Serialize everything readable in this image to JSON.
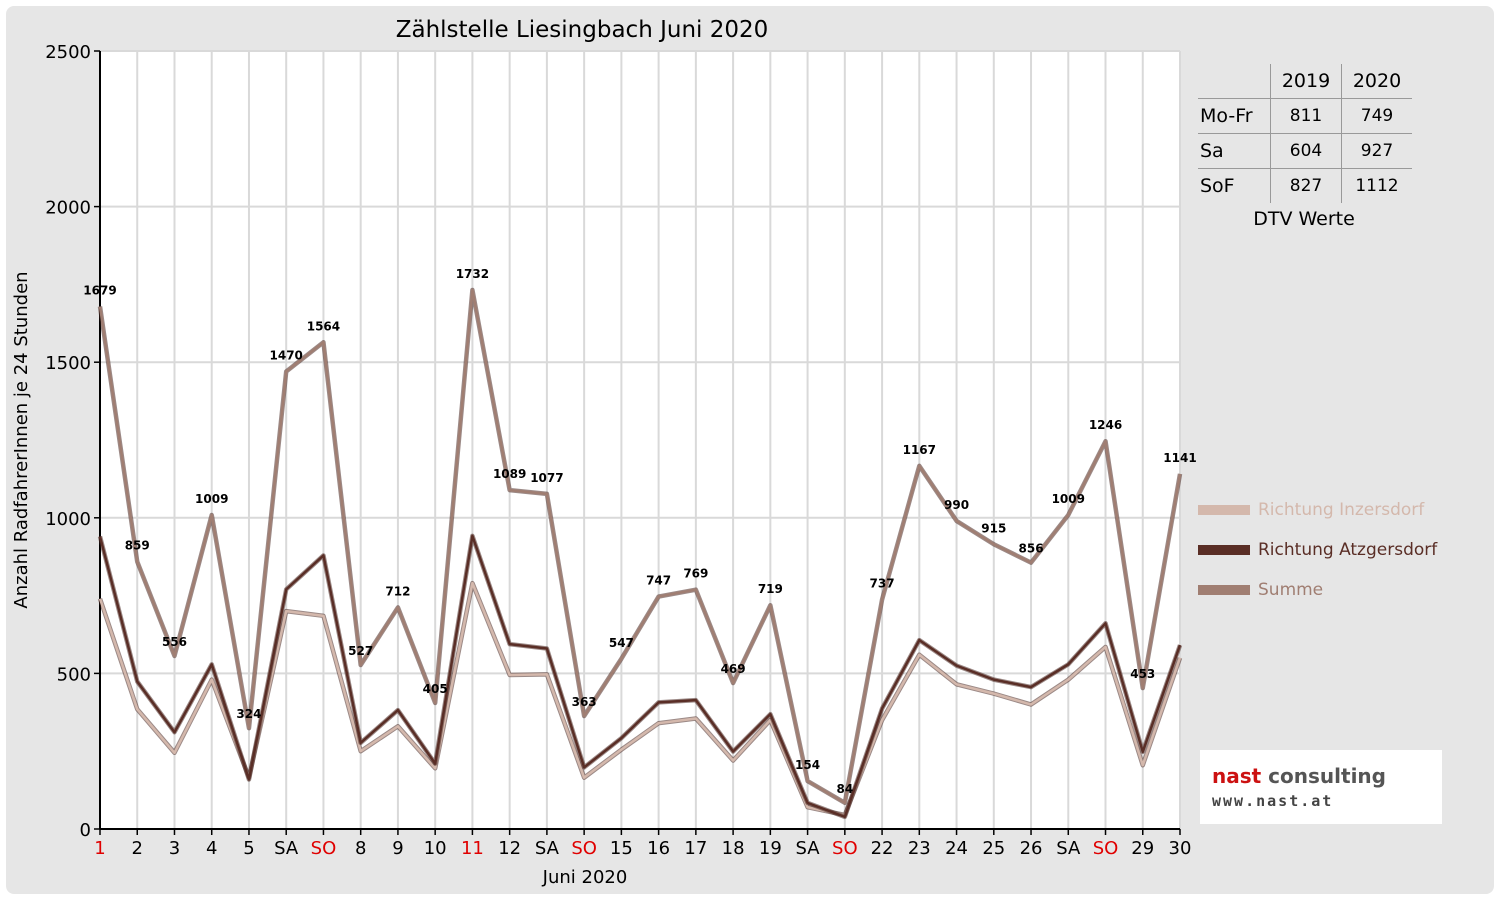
{
  "chart_data": {
    "type": "line",
    "title": "Zählstelle Liesingbach Juni 2020",
    "xlabel": "Juni 2020",
    "ylabel": "Anzahl RadfahrerInnen je 24 Stunden",
    "ylim": [
      0,
      2500
    ],
    "yticks": [
      "0",
      "500",
      "1000",
      "1500",
      "2000",
      "2500"
    ],
    "grid": true,
    "legend_position": "right",
    "categories": [
      "1",
      "2",
      "3",
      "4",
      "5",
      "SA",
      "SO",
      "8",
      "9",
      "10",
      "11",
      "12",
      "SA",
      "SO",
      "15",
      "16",
      "17",
      "18",
      "19",
      "SA",
      "SO",
      "22",
      "23",
      "24",
      "25",
      "26",
      "SA",
      "SO",
      "29",
      "30"
    ],
    "category_colors": [
      "#e00000",
      "#000000",
      "#000000",
      "#000000",
      "#000000",
      "#000000",
      "#e00000",
      "#000000",
      "#000000",
      "#000000",
      "#e00000",
      "#000000",
      "#000000",
      "#e00000",
      "#000000",
      "#000000",
      "#000000",
      "#000000",
      "#000000",
      "#000000",
      "#e00000",
      "#000000",
      "#000000",
      "#000000",
      "#000000",
      "#000000",
      "#000000",
      "#e00000",
      "#000000",
      "#000000"
    ],
    "series": [
      {
        "name": "Richtung Inzersdorf",
        "color": "#d4b8ac",
        "values": [
          740,
          385,
          245,
          480,
          165,
          700,
          685,
          250,
          330,
          195,
          790,
          495,
          497,
          165,
          255,
          340,
          355,
          220,
          350,
          70,
          45,
          350,
          560,
          465,
          435,
          400,
          480,
          585,
          205,
          550
        ]
      },
      {
        "name": "Richtung Atzgersdorf",
        "color": "#5a2e26",
        "values": [
          940,
          474,
          311,
          529,
          159,
          770,
          879,
          277,
          382,
          210,
          942,
          594,
          580,
          198,
          292,
          407,
          414,
          249,
          369,
          84,
          39,
          387,
          607,
          525,
          480,
          456,
          529,
          661,
          248,
          591
        ]
      },
      {
        "name": "Summe",
        "color": "#a07e72",
        "values": [
          1679,
          859,
          556,
          1009,
          324,
          1470,
          1564,
          527,
          712,
          405,
          1732,
          1089,
          1077,
          363,
          547,
          747,
          769,
          469,
          719,
          154,
          84,
          737,
          1167,
          990,
          915,
          856,
          1009,
          1246,
          453,
          1141
        ]
      }
    ],
    "data_labels": [
      "1679",
      "859",
      "556",
      "1009",
      "324",
      "1470",
      "1564",
      "527",
      "712",
      "405",
      "1732",
      "1089",
      "1077",
      "363",
      "547",
      "747",
      "769",
      "469",
      "719",
      "154",
      "84",
      "737",
      "1167",
      "990",
      "915",
      "856",
      "1009",
      "1246",
      "453",
      "1141"
    ]
  },
  "dtv_table": {
    "years": [
      "2019",
      "2020"
    ],
    "rows": [
      {
        "label": "Mo-Fr",
        "v2019": "811",
        "v2020": "749"
      },
      {
        "label": "Sa",
        "v2019": "604",
        "v2020": "927"
      },
      {
        "label": "SoF",
        "v2019": "827",
        "v2020": "1112"
      }
    ],
    "caption": "DTV Werte"
  },
  "logo": {
    "name_part1": "nast",
    "name_part2": "consulting",
    "url": "www.nast.at"
  }
}
